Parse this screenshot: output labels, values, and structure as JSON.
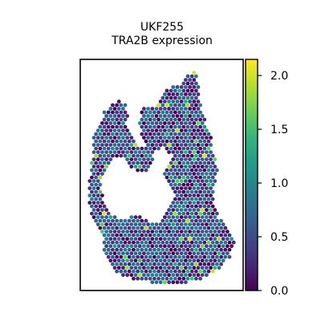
{
  "chart_data": {
    "type": "spatial-scatter",
    "title": [
      "UKF255",
      "TRA2B expression"
    ],
    "gene": "TRA2B",
    "sample": "UKF255",
    "color_scale": {
      "name": "viridis",
      "min": 0.0,
      "max": 2.15,
      "ticks": [
        0.0,
        0.5,
        1.0,
        1.5,
        2.0
      ],
      "tick_labels": [
        "0.0",
        "0.5",
        "1.0",
        "1.5",
        "2.0"
      ],
      "stops": [
        "#440154",
        "#482878",
        "#3e4989",
        "#31688e",
        "#26828e",
        "#1f9e89",
        "#35b779",
        "#6ece58",
        "#b5de2b",
        "#fde725"
      ]
    },
    "axes": {
      "xlabel": "",
      "ylabel": "",
      "ticks_visible": false,
      "grid": false
    },
    "legend": "colorbar-right",
    "expression_distribution": {
      "mostly_low_range": [
        0.0,
        0.8
      ],
      "occasional_high_range": [
        1.0,
        2.1
      ]
    }
  }
}
